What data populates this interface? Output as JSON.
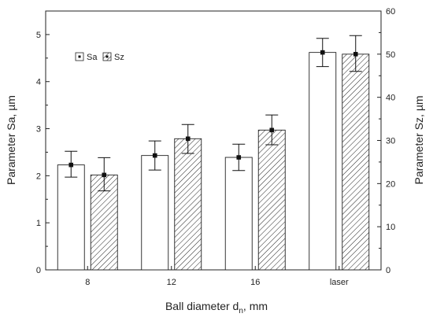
{
  "chart_data": {
    "type": "bar",
    "categories": [
      "8",
      "12",
      "16",
      "laser"
    ],
    "series": [
      {
        "name": "Sa",
        "axis": "left",
        "values": [
          2.23,
          2.43,
          2.39,
          4.62
        ],
        "error_low": [
          1.97,
          2.12,
          2.11,
          4.32
        ],
        "error_high": [
          2.52,
          2.74,
          2.67,
          4.92
        ]
      },
      {
        "name": "Sz",
        "axis": "right",
        "values": [
          22.0,
          30.4,
          32.4,
          50.0
        ],
        "error_low": [
          18.3,
          27.0,
          29.0,
          46.0
        ],
        "error_high": [
          26.0,
          33.7,
          35.9,
          54.3
        ]
      }
    ],
    "xlabel_main": "Ball diameter d",
    "xlabel_sub": "n",
    "xlabel_tail": ", mm",
    "ylabel_left": "Parameter Sa, µm",
    "ylabel_right": "Parameter Sz, µm",
    "ylim_left": [
      0,
      5.5
    ],
    "ylim_right": [
      0,
      60
    ],
    "yticks_left": [
      "0",
      "1",
      "2",
      "3",
      "4",
      "5"
    ],
    "yticks_right": [
      "0",
      "10",
      "20",
      "30",
      "40",
      "50",
      "60"
    ],
    "legend_position": "top-left",
    "grid": false
  }
}
